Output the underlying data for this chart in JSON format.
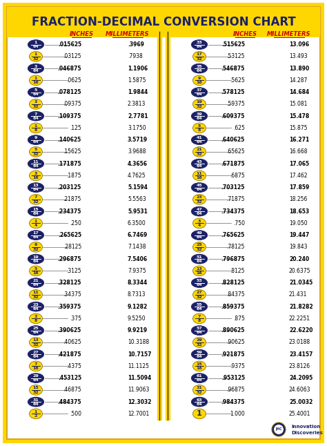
{
  "title": "FRACTION-DECIMAL CONVERSION CHART",
  "bg_color": "#FFFFFF",
  "title_bg": "#FFD700",
  "border_outer_color": "#DAA520",
  "border_inner_color": "#DAA520",
  "left_col": [
    {
      "num": "1",
      "den": "64",
      "dark": true,
      "decimal": ".015625",
      "mm": ".3969"
    },
    {
      "num": "1",
      "den": "32",
      "dark": false,
      "decimal": ".03125",
      "mm": ".7938"
    },
    {
      "num": "3",
      "den": "64",
      "dark": true,
      "decimal": ".046875",
      "mm": "1.1906"
    },
    {
      "num": "1",
      "den": "16",
      "dark": false,
      "decimal": ".0625",
      "mm": "1.5875"
    },
    {
      "num": "5",
      "den": "64",
      "dark": true,
      "decimal": ".078125",
      "mm": "1.9844"
    },
    {
      "num": "3",
      "den": "32",
      "dark": false,
      "decimal": ".09375",
      "mm": "2.3813"
    },
    {
      "num": "7",
      "den": "64",
      "dark": true,
      "decimal": ".109375",
      "mm": "2.7781"
    },
    {
      "num": "1",
      "den": "8",
      "dark": false,
      "decimal": ".125",
      "mm": "3.1750"
    },
    {
      "num": "9",
      "den": "64",
      "dark": true,
      "decimal": ".140625",
      "mm": "3.5719"
    },
    {
      "num": "5",
      "den": "32",
      "dark": false,
      "decimal": ".15625",
      "mm": "3.9688"
    },
    {
      "num": "11",
      "den": "64",
      "dark": true,
      "decimal": ".171875",
      "mm": "4.3656"
    },
    {
      "num": "3",
      "den": "16",
      "dark": false,
      "decimal": ".1875",
      "mm": "4.7625"
    },
    {
      "num": "13",
      "den": "64",
      "dark": true,
      "decimal": ".203125",
      "mm": "5.1594"
    },
    {
      "num": "7",
      "den": "32",
      "dark": false,
      "decimal": ".21875",
      "mm": "5.5563"
    },
    {
      "num": "15",
      "den": "64",
      "dark": true,
      "decimal": ".234375",
      "mm": "5.9531"
    },
    {
      "num": "1",
      "den": "4",
      "dark": false,
      "decimal": ".250",
      "mm": "6.3500"
    },
    {
      "num": "17",
      "den": "64",
      "dark": true,
      "decimal": ".265625",
      "mm": "6.7469"
    },
    {
      "num": "9",
      "den": "32",
      "dark": false,
      "decimal": ".28125",
      "mm": "7.1438"
    },
    {
      "num": "19",
      "den": "64",
      "dark": true,
      "decimal": ".296875",
      "mm": "7.5406"
    },
    {
      "num": "5",
      "den": "16",
      "dark": false,
      "decimal": ".3125",
      "mm": "7.9375"
    },
    {
      "num": "21",
      "den": "64",
      "dark": true,
      "decimal": ".328125",
      "mm": "8.3344"
    },
    {
      "num": "11",
      "den": "32",
      "dark": false,
      "decimal": ".34375",
      "mm": "8.7313"
    },
    {
      "num": "23",
      "den": "64",
      "dark": true,
      "decimal": ".359375",
      "mm": "9.1282"
    },
    {
      "num": "3",
      "den": "8",
      "dark": false,
      "decimal": ".375",
      "mm": "9.5250"
    },
    {
      "num": "25",
      "den": "64",
      "dark": true,
      "decimal": ".390625",
      "mm": "9.9219"
    },
    {
      "num": "13",
      "den": "32",
      "dark": false,
      "decimal": ".40625",
      "mm": "10.3188"
    },
    {
      "num": "27",
      "den": "64",
      "dark": true,
      "decimal": ".421875",
      "mm": "10.7157"
    },
    {
      "num": "7",
      "den": "16",
      "dark": false,
      "decimal": ".4375",
      "mm": "11.1125"
    },
    {
      "num": "29",
      "den": "64",
      "dark": true,
      "decimal": ".453125",
      "mm": "11.5094"
    },
    {
      "num": "15",
      "den": "32",
      "dark": false,
      "decimal": ".46875",
      "mm": "11.9063"
    },
    {
      "num": "31",
      "den": "64",
      "dark": true,
      "decimal": ".484375",
      "mm": "12.3032"
    },
    {
      "num": "1",
      "den": "2",
      "dark": false,
      "decimal": ".500",
      "mm": "12.7001"
    }
  ],
  "right_col": [
    {
      "num": "33",
      "den": "64",
      "dark": true,
      "decimal": ".515625",
      "mm": "13.096"
    },
    {
      "num": "17",
      "den": "32",
      "dark": false,
      "decimal": ".53125",
      "mm": "13.493"
    },
    {
      "num": "35",
      "den": "64",
      "dark": true,
      "decimal": ".546875",
      "mm": "13.890"
    },
    {
      "num": "9",
      "den": "16",
      "dark": false,
      "decimal": ".5625",
      "mm": "14.287"
    },
    {
      "num": "37",
      "den": "64",
      "dark": true,
      "decimal": ".578125",
      "mm": "14.684"
    },
    {
      "num": "19",
      "den": "32",
      "dark": false,
      "decimal": ".59375",
      "mm": "15.081"
    },
    {
      "num": "39",
      "den": "64",
      "dark": true,
      "decimal": ".609375",
      "mm": "15.478"
    },
    {
      "num": "5",
      "den": "8",
      "dark": false,
      "decimal": ".625",
      "mm": "15.875"
    },
    {
      "num": "41",
      "den": "64",
      "dark": true,
      "decimal": ".640625",
      "mm": "16.271"
    },
    {
      "num": "21",
      "den": "32",
      "dark": false,
      "decimal": ".65625",
      "mm": "16.668"
    },
    {
      "num": "43",
      "den": "64",
      "dark": true,
      "decimal": ".671875",
      "mm": "17.065"
    },
    {
      "num": "11",
      "den": "16",
      "dark": false,
      "decimal": ".6875",
      "mm": "17.462"
    },
    {
      "num": "45",
      "den": "64",
      "dark": true,
      "decimal": ".703125",
      "mm": "17.859"
    },
    {
      "num": "23",
      "den": "32",
      "dark": false,
      "decimal": ".71875",
      "mm": "18.256"
    },
    {
      "num": "47",
      "den": "64",
      "dark": true,
      "decimal": ".734375",
      "mm": "18.653"
    },
    {
      "num": "3",
      "den": "4",
      "dark": false,
      "decimal": ".750",
      "mm": "19.050"
    },
    {
      "num": "49",
      "den": "64",
      "dark": true,
      "decimal": ".765625",
      "mm": "19.447"
    },
    {
      "num": "25",
      "den": "32",
      "dark": false,
      "decimal": ".78125",
      "mm": "19.843"
    },
    {
      "num": "51",
      "den": "64",
      "dark": true,
      "decimal": ".796875",
      "mm": "20.240"
    },
    {
      "num": "13",
      "den": "16",
      "dark": false,
      "decimal": ".8125",
      "mm": "20.6375"
    },
    {
      "num": "53",
      "den": "64",
      "dark": true,
      "decimal": ".828125",
      "mm": "21.0345"
    },
    {
      "num": "27",
      "den": "32",
      "dark": false,
      "decimal": ".84375",
      "mm": "21.431"
    },
    {
      "num": "55",
      "den": "64",
      "dark": true,
      "decimal": ".859375",
      "mm": "21.8282"
    },
    {
      "num": "7",
      "den": "8",
      "dark": false,
      "decimal": ".875",
      "mm": "22.2251"
    },
    {
      "num": "57",
      "den": "64",
      "dark": true,
      "decimal": ".890625",
      "mm": "22.6220"
    },
    {
      "num": "29",
      "den": "32",
      "dark": false,
      "decimal": ".90625",
      "mm": "23.0188"
    },
    {
      "num": "59",
      "den": "64",
      "dark": true,
      "decimal": ".921875",
      "mm": "23.4157"
    },
    {
      "num": "15",
      "den": "16",
      "dark": false,
      "decimal": ".9375",
      "mm": "23.8126"
    },
    {
      "num": "61",
      "den": "64",
      "dark": true,
      "decimal": ".953125",
      "mm": "24.2095"
    },
    {
      "num": "31",
      "den": "32",
      "dark": false,
      "decimal": ".96875",
      "mm": "24.6063"
    },
    {
      "num": "63",
      "den": "64",
      "dark": true,
      "decimal": ".984375",
      "mm": "25.0032"
    },
    {
      "num": "1",
      "den": "",
      "dark": false,
      "decimal": "1.000",
      "mm": "25.4001"
    }
  ],
  "dark_circle_color": "#1C2166",
  "dark_circle_text": "#FFFFFF",
  "light_circle_color": "#FFD700",
  "light_circle_text": "#1C2166",
  "inches_header_color": "#CC0000",
  "mm_header_color": "#CC0000",
  "divider_color": "#FFD700",
  "divider_border": "#333300",
  "footer_text": "Innovation\nDiscoveries"
}
